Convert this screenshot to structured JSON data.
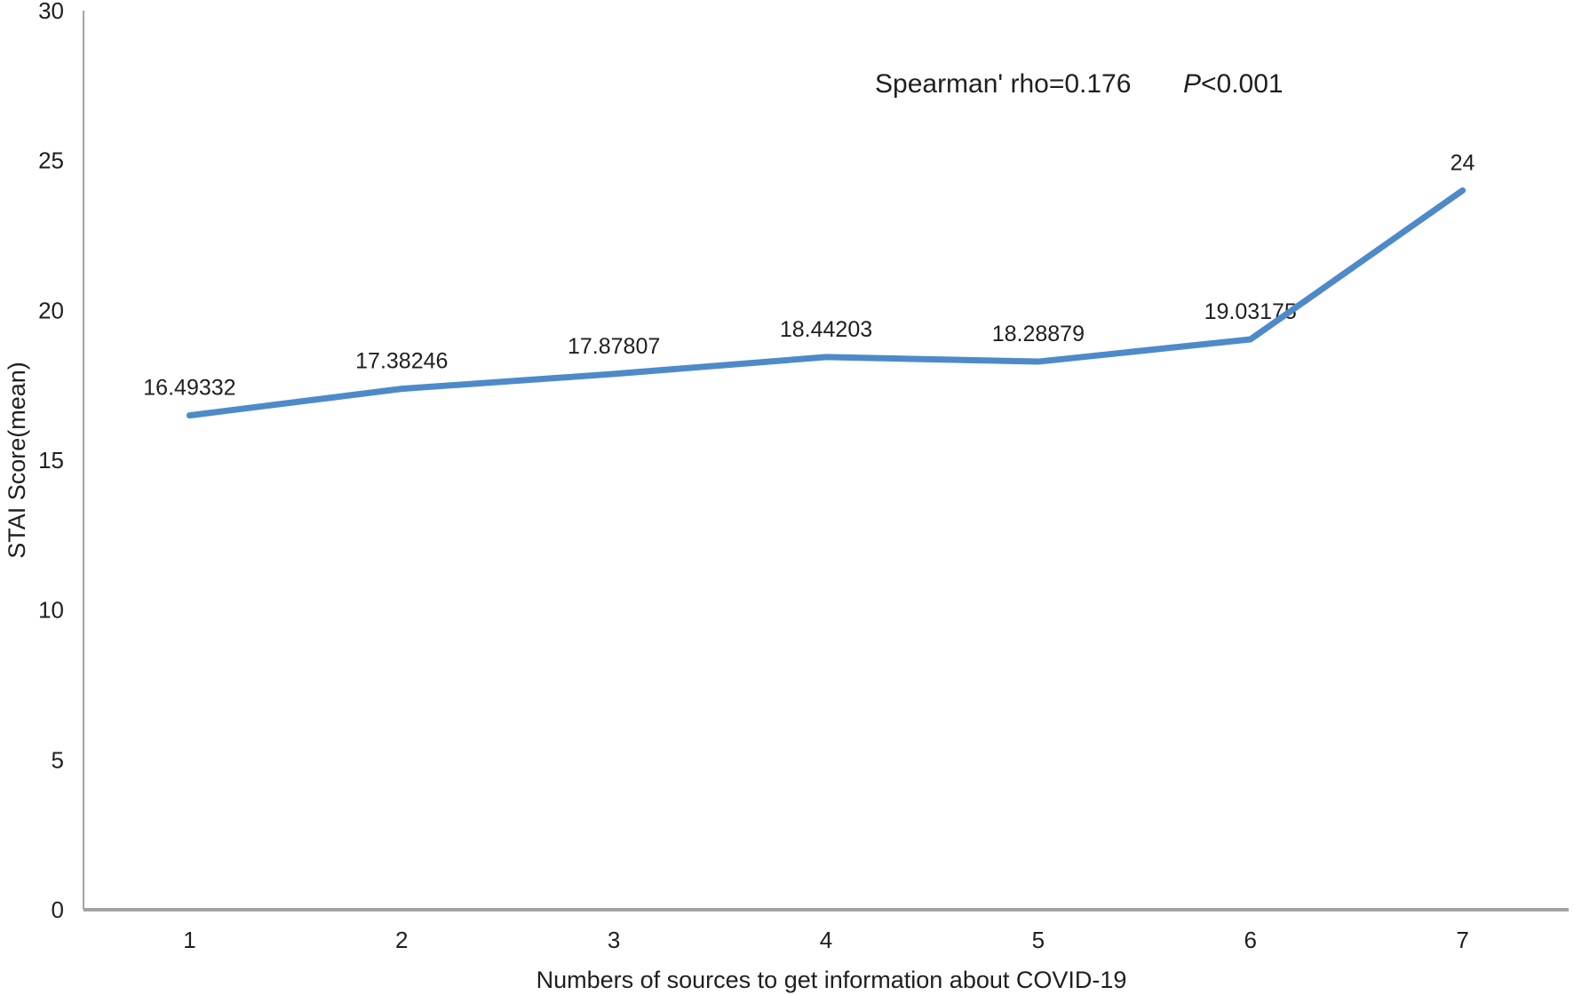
{
  "chart_data": {
    "type": "line",
    "categories": [
      "1",
      "2",
      "3",
      "4",
      "5",
      "6",
      "7"
    ],
    "series": [
      {
        "name": "STAI Score (mean)",
        "values": [
          16.49332,
          17.38246,
          17.87807,
          18.44203,
          18.28879,
          19.03175,
          24
        ],
        "color": "#4e8ac9"
      }
    ],
    "data_labels": [
      "16.49332",
      "17.38246",
      "17.87807",
      "18.44203",
      "18.28879",
      "19.03175",
      "24"
    ],
    "title": "",
    "xlabel": "Numbers of sources to get information about COVID-19",
    "ylabel": "STAI Score(mean)",
    "ylim": [
      0,
      30
    ],
    "y_ticks": [
      "0",
      "5",
      "10",
      "15",
      "20",
      "25",
      "30"
    ],
    "annotation": {
      "stat": "Spearman' rho=0.176",
      "p_symbol": "P",
      "p_rest": "<0.001"
    },
    "grid": false,
    "legend": false,
    "legend_position": "none",
    "axis_color": "#a3a3a3",
    "text_color": "#1f1f1f",
    "background_color": "#ffffff"
  }
}
